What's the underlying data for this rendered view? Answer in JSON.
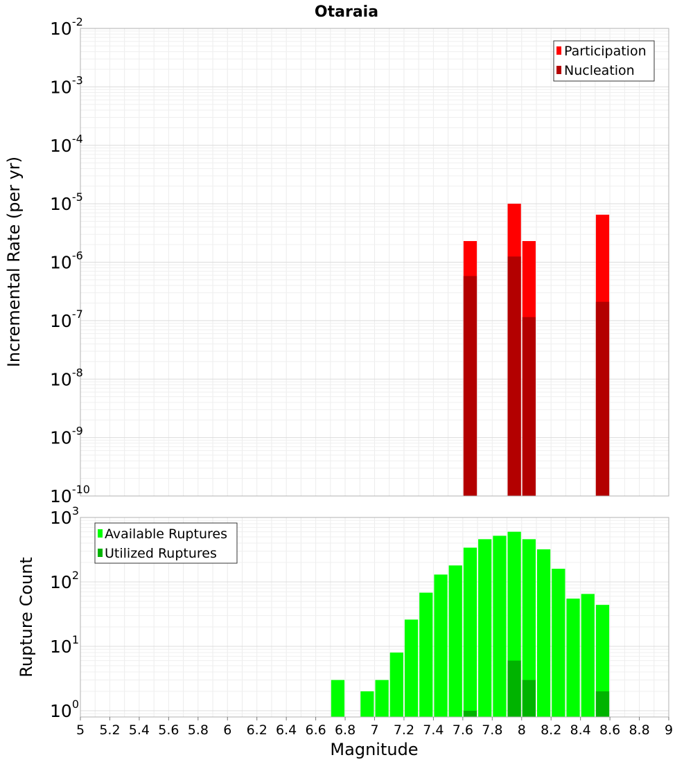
{
  "chart_data": [
    {
      "type": "bar",
      "title": "Otaraia",
      "xlabel": "Magnitude",
      "ylabel": "Incremental Rate (per yr)",
      "yscale": "log",
      "ylim": [
        1e-10,
        0.01
      ],
      "xlim": [
        5,
        9
      ],
      "grid": true,
      "legend_position": "top-right",
      "bar_width": 0.1,
      "ytick_exponents": [
        "-2",
        "-3",
        "-4",
        "-5",
        "-6",
        "-7",
        "-8",
        "-9",
        "-10"
      ],
      "series": [
        {
          "name": "Participation",
          "color": "#ff0000",
          "x": [
            7.65,
            7.95,
            8.05,
            8.55
          ],
          "values": [
            2.3e-06,
            1e-05,
            2.3e-06,
            6.5e-06
          ]
        },
        {
          "name": "Nucleation",
          "color": "#b30000",
          "x": [
            7.65,
            7.95,
            8.05,
            8.55
          ],
          "values": [
            5.8e-07,
            1.25e-06,
            1.15e-07,
            2.1e-07
          ]
        }
      ]
    },
    {
      "type": "bar",
      "xlabel": "Magnitude",
      "ylabel": "Rupture Count",
      "yscale": "log",
      "ylim": [
        0.8,
        1000
      ],
      "xlim": [
        5,
        9
      ],
      "grid": true,
      "legend_position": "top-left",
      "bar_width": 0.1,
      "ytick_exponents": [
        "3",
        "2",
        "1",
        "0"
      ],
      "xticks": [
        "5",
        "5.2",
        "5.4",
        "5.6",
        "5.8",
        "6",
        "6.2",
        "6.4",
        "6.6",
        "6.8",
        "7",
        "7.2",
        "7.4",
        "7.6",
        "7.8",
        "8",
        "8.2",
        "8.4",
        "8.6",
        "8.8",
        "9"
      ],
      "series": [
        {
          "name": "Available Ruptures",
          "color": "#00ff00",
          "x": [
            6.75,
            6.95,
            7.05,
            7.15,
            7.25,
            7.35,
            7.45,
            7.55,
            7.65,
            7.75,
            7.85,
            7.95,
            8.05,
            8.15,
            8.25,
            8.35,
            8.45,
            8.55
          ],
          "values": [
            3,
            2,
            3,
            8,
            26,
            68,
            130,
            180,
            340,
            460,
            520,
            600,
            460,
            320,
            160,
            55,
            65,
            44
          ]
        },
        {
          "name": "Utilized Ruptures",
          "color": "#00b300",
          "x": [
            7.65,
            7.95,
            8.05,
            8.55
          ],
          "values": [
            1,
            6,
            3,
            2
          ]
        }
      ]
    }
  ]
}
